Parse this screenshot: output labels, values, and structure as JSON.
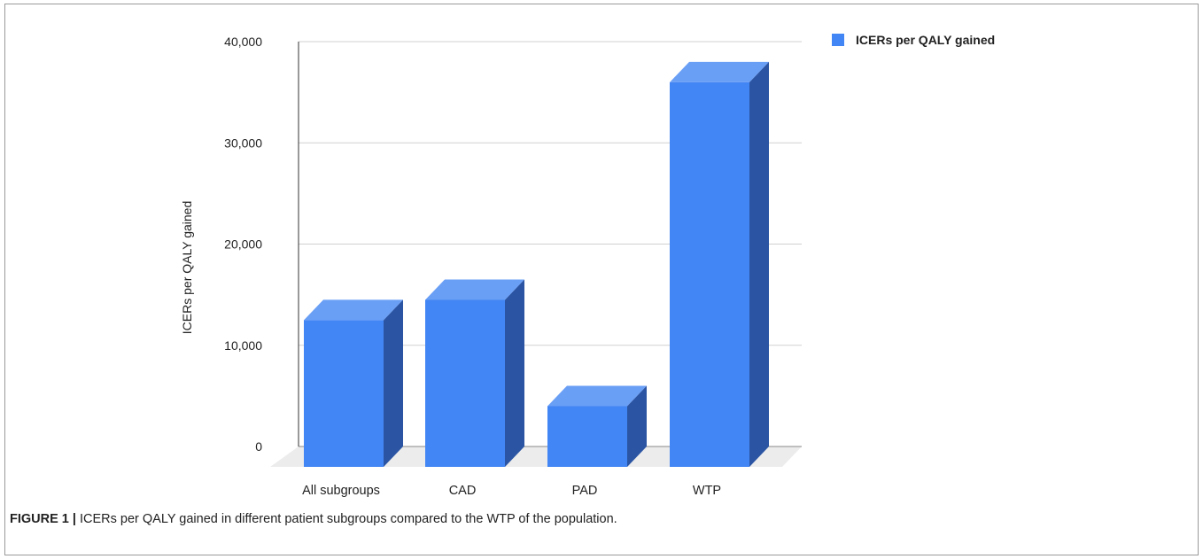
{
  "chart_data": {
    "type": "bar",
    "categories": [
      "All subgroups",
      "CAD",
      "PAD",
      "WTP"
    ],
    "series": [
      {
        "name": "ICERs per QALY gained",
        "values": [
          14500,
          16500,
          6000,
          38000
        ],
        "color": "#4285f4"
      }
    ],
    "ylabel": "ICERs per QALY gained",
    "xlabel": "",
    "ylim": [
      0,
      40000
    ],
    "yticks": [
      "0",
      "10,000",
      "20,000",
      "30,000",
      "40,000"
    ],
    "grid": true,
    "legend": "top-right",
    "style": "3d"
  },
  "caption": {
    "label": "FIGURE 1 |",
    "text": " ICERs per QALY gained in different patient subgroups compared to the WTP of the population."
  },
  "colors": {
    "bar_front": "#4285f4",
    "bar_top": "#6a9ff6",
    "bar_side": "#2b55a3",
    "floor": "#ececec",
    "grid": "#d0d0d0"
  }
}
